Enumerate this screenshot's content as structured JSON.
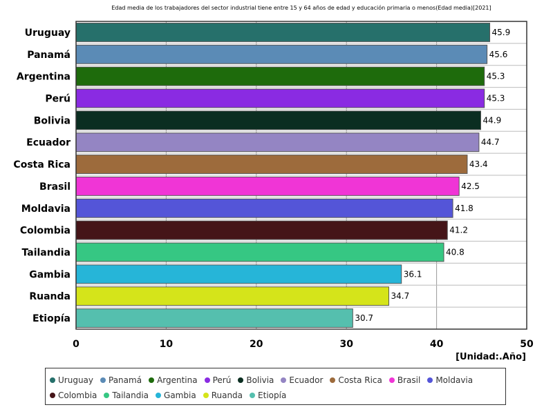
{
  "chart_data": {
    "type": "bar",
    "orientation": "horizontal",
    "title": "Edad media de los trabajadores del sector industrial tiene entre 15 y 64 años de edad y educación primaria o menos(Edad media)[2021]",
    "unit_label": "[Unidad:.Año]",
    "categories": [
      "Uruguay",
      "Panamá",
      "Argentina",
      "Perú",
      "Bolivia",
      "Ecuador",
      "Costa Rica",
      "Brasil",
      "Moldavia",
      "Colombia",
      "Tailandia",
      "Gambia",
      "Ruanda",
      "Etiopía"
    ],
    "values": [
      45.9,
      45.6,
      45.3,
      45.3,
      44.9,
      44.7,
      43.4,
      42.5,
      41.8,
      41.2,
      40.8,
      36.1,
      34.7,
      30.7
    ],
    "colors": [
      "#26706b",
      "#5b8bb6",
      "#1e6b0c",
      "#8a2be2",
      "#0b2e21",
      "#9485c3",
      "#9d6b3c",
      "#f035d6",
      "#5455d8",
      "#451518",
      "#36c783",
      "#26b5d8",
      "#d5e41a",
      "#55bfae"
    ],
    "xlim": [
      0,
      50
    ],
    "xticks": [
      0,
      10,
      20,
      30,
      40,
      50
    ],
    "grid": true,
    "legend_position": "bottom"
  }
}
